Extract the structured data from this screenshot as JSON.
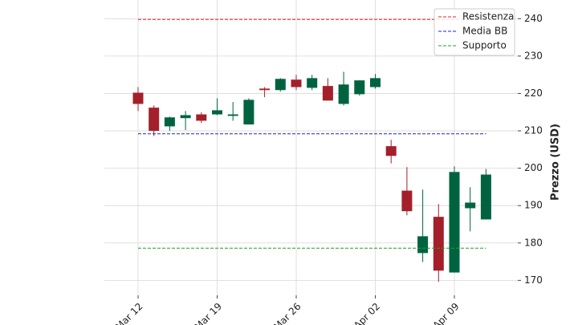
{
  "chart_data": {
    "type": "candlestick",
    "categories": [
      "Mar 12",
      null,
      null,
      null,
      null,
      "Mar 19",
      null,
      null,
      null,
      null,
      "Mar 26",
      null,
      null,
      null,
      null,
      "Apr 02",
      null,
      null,
      null,
      null,
      "Apr 09",
      null,
      null
    ],
    "open": [
      220.2,
      216.2,
      211.2,
      213.4,
      214.4,
      214.4,
      214.0,
      211.7,
      221.3,
      220.9,
      223.7,
      221.5,
      222.0,
      217.2,
      219.8,
      221.7,
      205.9,
      194.0,
      177.3,
      187.0,
      172.1,
      189.3,
      186.3
    ],
    "high": [
      221.7,
      216.8,
      213.8,
      215.3,
      215.0,
      218.7,
      217.7,
      218.7,
      221.7,
      224.1,
      225.0,
      225.0,
      224.1,
      225.8,
      223.5,
      225.2,
      207.6,
      200.3,
      194.3,
      190.4,
      200.5,
      194.9,
      199.8
    ],
    "low": [
      215.3,
      208.6,
      210.0,
      210.2,
      212.1,
      214.2,
      212.7,
      211.7,
      219.0,
      220.5,
      220.9,
      220.9,
      218.1,
      216.8,
      219.4,
      221.3,
      201.3,
      187.4,
      174.9,
      169.6,
      172.1,
      183.1,
      186.3
    ],
    "close": [
      217.2,
      210.0,
      213.6,
      214.2,
      212.7,
      215.5,
      214.4,
      218.3,
      220.9,
      223.9,
      221.7,
      224.1,
      218.1,
      222.4,
      223.5,
      224.1,
      203.3,
      188.5,
      181.8,
      172.6,
      199.0,
      190.8,
      198.3
    ],
    "up_color": "#006340",
    "down_color": "#a3202b",
    "hlines": [
      {
        "name": "Resistenza",
        "value": 239.8,
        "color": "#e8202a"
      },
      {
        "name": "Media BB",
        "value": 209.2,
        "color": "#2020d8"
      },
      {
        "name": "Supporto",
        "value": 178.6,
        "color": "#20a020"
      }
    ],
    "y_label": "Prezzo (USD)",
    "ylim": [
      166,
      245
    ],
    "yticks": [
      170,
      180,
      190,
      200,
      210,
      220,
      230,
      240
    ],
    "grid": true,
    "legend": "upper right"
  }
}
